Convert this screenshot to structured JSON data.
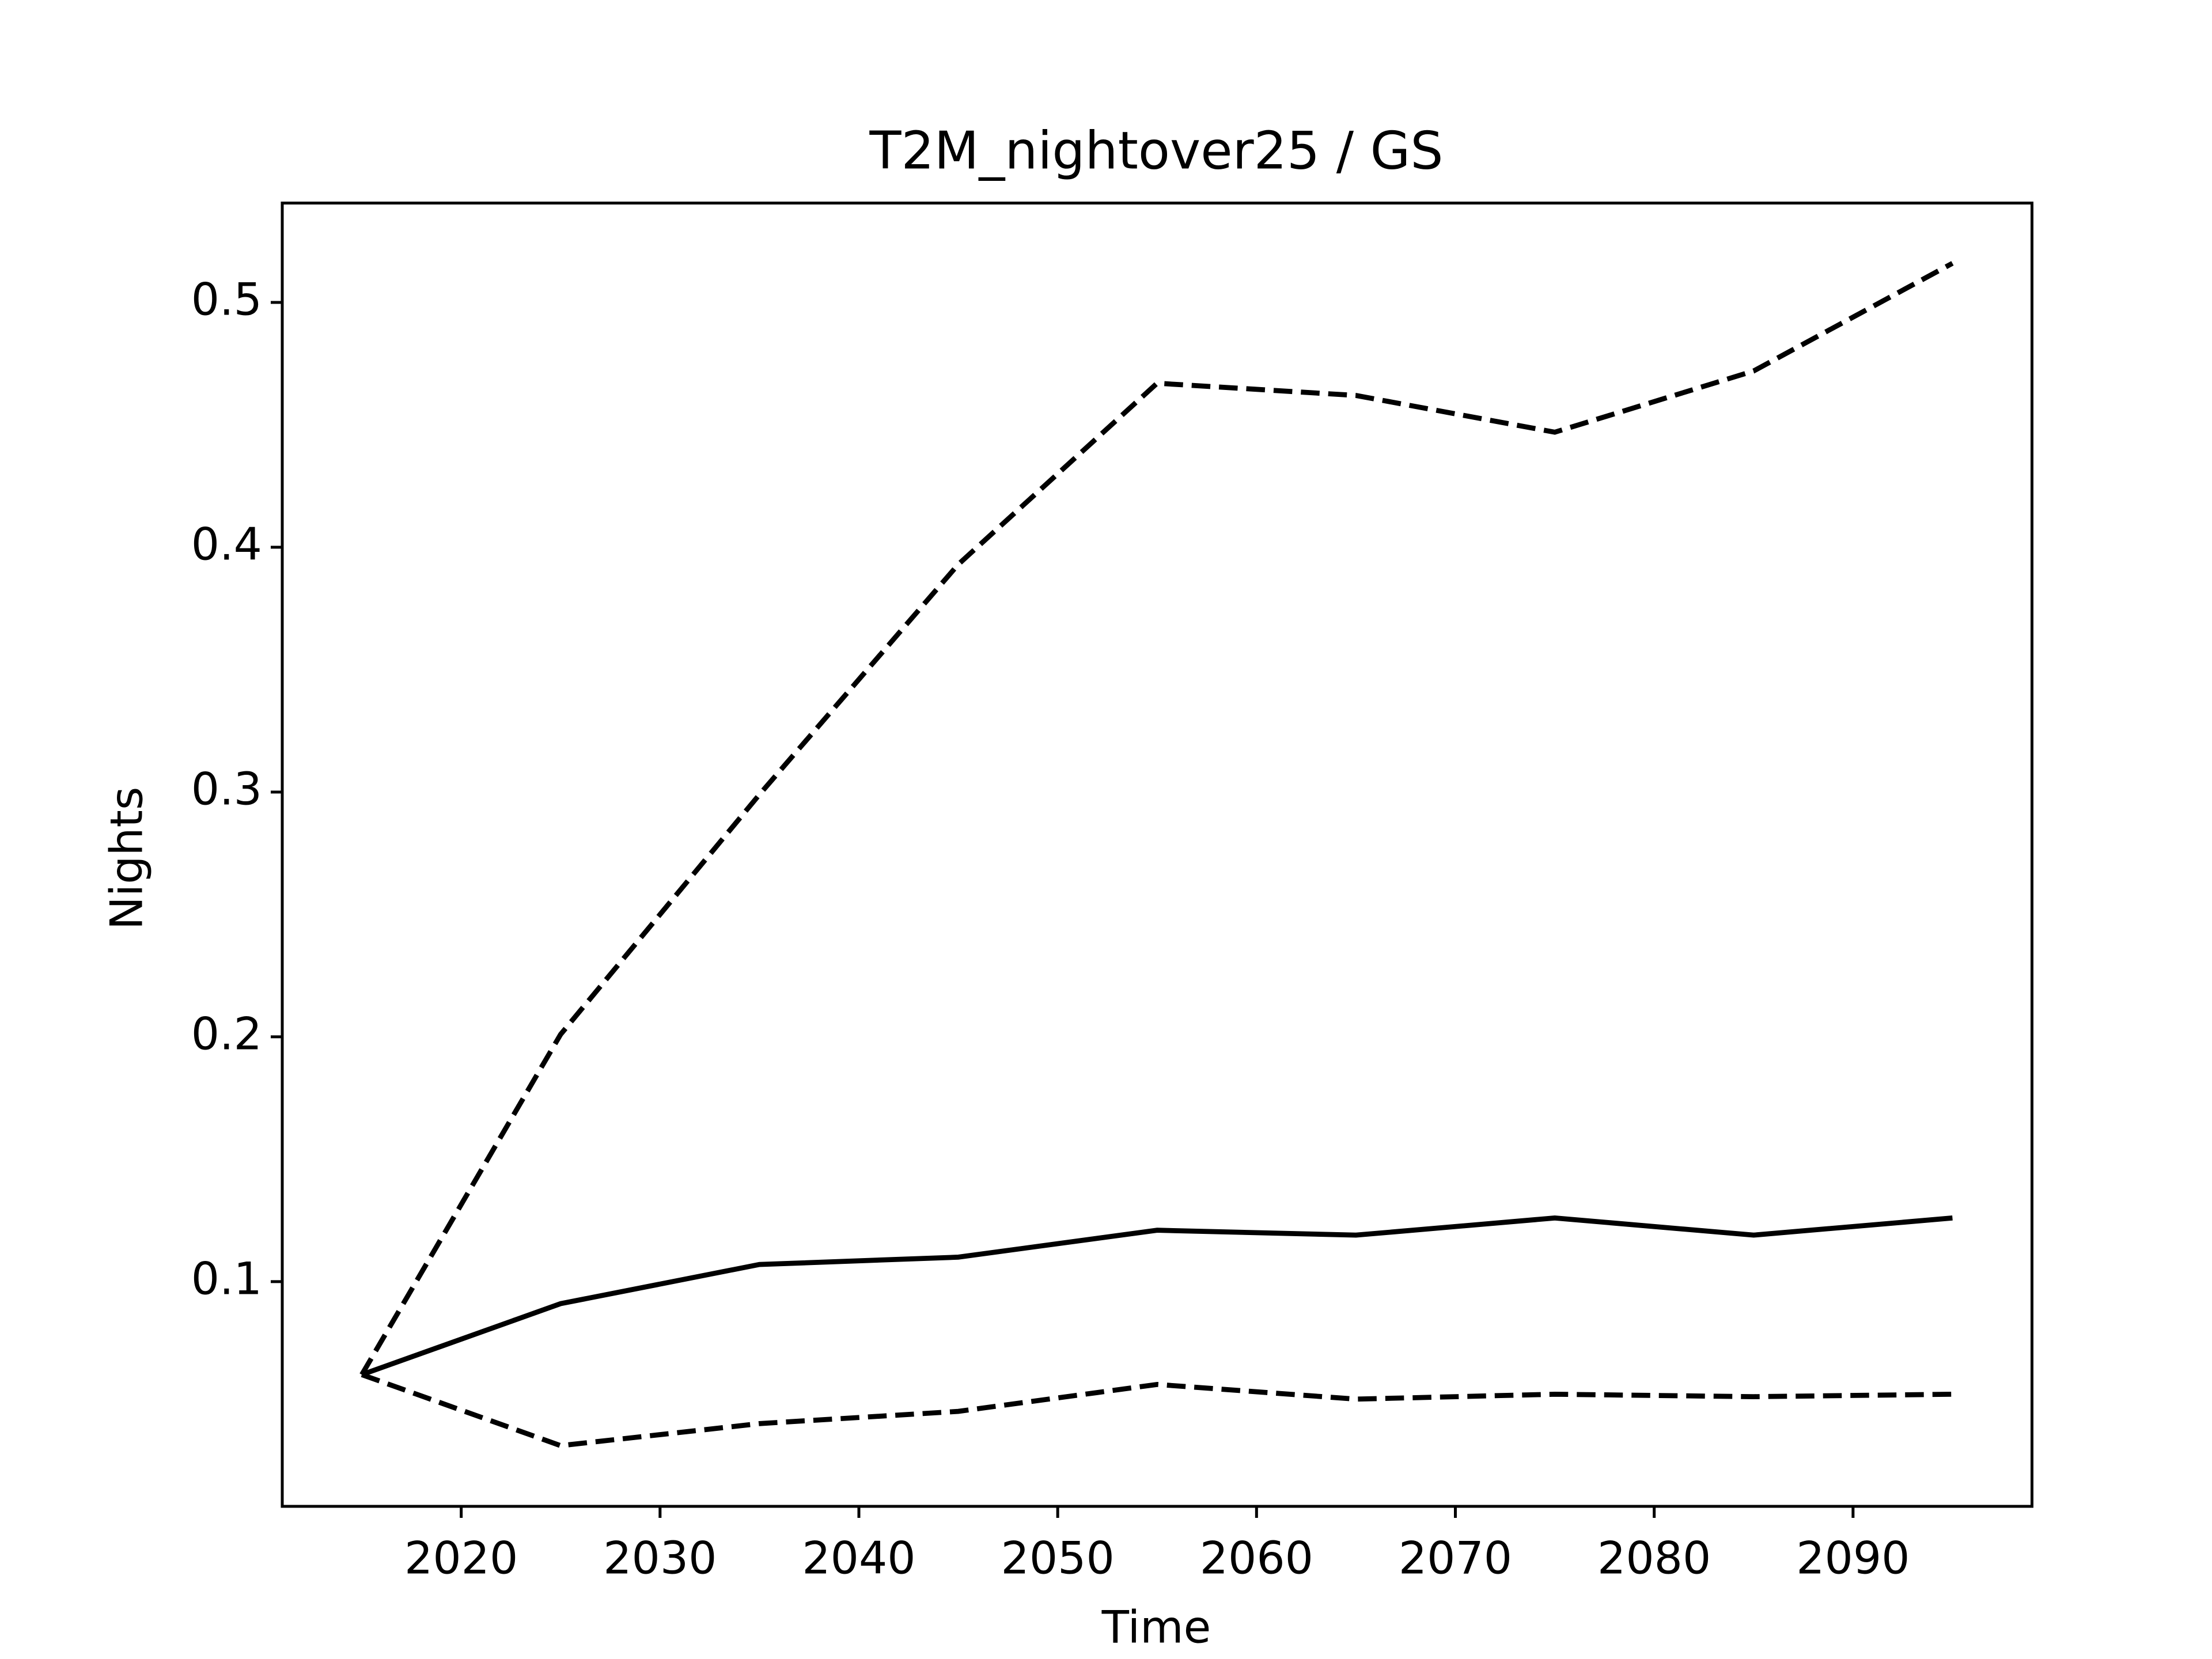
{
  "chart_data": {
    "type": "line",
    "title": "T2M_nightover25 / GS",
    "x_label": "Time",
    "y_label": "Nights",
    "x": [
      2015,
      2025,
      2035,
      2045,
      2055,
      2065,
      2075,
      2085,
      2095
    ],
    "series": [
      {
        "color": "#000000",
        "dashed": false,
        "values": [
          0.062,
          0.091,
          0.107,
          0.11,
          0.121,
          0.119,
          0.126,
          0.119,
          0.126
        ]
      },
      {
        "color": "#000000",
        "dashed": true,
        "values": [
          0.062,
          0.201,
          0.299,
          0.393,
          0.467,
          0.462,
          0.447,
          0.472,
          0.516
        ]
      },
      {
        "color": "#000000",
        "dashed": true,
        "values": [
          0.062,
          0.033,
          0.042,
          0.047,
          0.058,
          0.052,
          0.054,
          0.053,
          0.054
        ]
      }
    ],
    "xlim": [
      2011,
      2099
    ],
    "xticks": [
      2020,
      2030,
      2040,
      2050,
      2060,
      2070,
      2080,
      2090
    ],
    "ylim": [
      0.0082,
      0.5406
    ],
    "yticks": [
      {
        "value": 0.1,
        "label": "0.1"
      },
      {
        "value": 0.2,
        "label": "0.2"
      },
      {
        "value": 0.3,
        "label": "0.3"
      },
      {
        "value": 0.4,
        "label": "0.4"
      },
      {
        "value": 0.5,
        "label": "0.5"
      }
    ],
    "grid": false
  }
}
